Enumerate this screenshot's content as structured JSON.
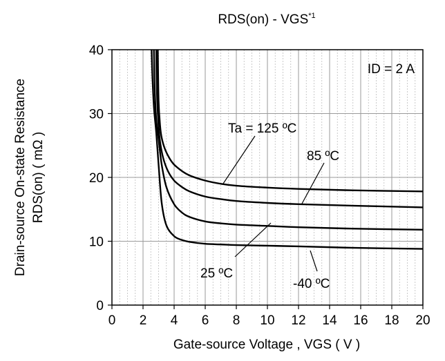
{
  "chart_data": {
    "type": "line",
    "title": "RDS(on) - VGS",
    "title_superscript": "*1",
    "xlabel": "Gate-source Voltage , VGS ( V )",
    "ylabel_line1": "Drain-source On-state Resistance",
    "ylabel_line2": "RDS(on) ( mΩ )",
    "xlim": [
      0,
      20
    ],
    "ylim": [
      0,
      40
    ],
    "x_ticks": [
      "0",
      "2",
      "4",
      "6",
      "8",
      "10",
      "12",
      "14",
      "16",
      "18",
      "20"
    ],
    "y_ticks": [
      "0",
      "10",
      "20",
      "30",
      "40"
    ],
    "grid": true,
    "condition": "ID = 2 A",
    "series": [
      {
        "name": "Ta = 125 ºC",
        "x": [
          2.95,
          3.0,
          3.1,
          3.2,
          3.4,
          3.7,
          4.0,
          4.5,
          5.0,
          6.0,
          7.0,
          8.0,
          10.0,
          12.0,
          15.0,
          20.0
        ],
        "y": [
          40,
          32,
          28,
          26.2,
          24.5,
          23.0,
          22.0,
          21.0,
          20.3,
          19.5,
          19.0,
          18.7,
          18.4,
          18.2,
          18.0,
          17.8
        ]
      },
      {
        "name": "85 ºC",
        "x": [
          2.85,
          2.9,
          3.0,
          3.1,
          3.3,
          3.6,
          4.0,
          4.5,
          5.0,
          6.0,
          7.0,
          8.0,
          10.0,
          12.0,
          15.0,
          20.0
        ],
        "y": [
          40,
          33,
          28,
          25.5,
          23.0,
          21.0,
          19.5,
          18.5,
          17.8,
          17.0,
          16.6,
          16.3,
          16.0,
          15.8,
          15.6,
          15.3
        ]
      },
      {
        "name": "25 ºC",
        "x": [
          2.7,
          2.75,
          2.85,
          3.0,
          3.2,
          3.5,
          4.0,
          4.5,
          5.0,
          6.0,
          7.0,
          8.0,
          10.0,
          12.0,
          15.0,
          20.0
        ],
        "y": [
          40,
          34,
          29,
          26,
          22,
          18.5,
          15.8,
          14.5,
          13.8,
          13.1,
          12.8,
          12.6,
          12.4,
          12.2,
          12.0,
          11.8
        ]
      },
      {
        "name": "-40 ºC",
        "x": [
          2.55,
          2.6,
          2.7,
          2.85,
          3.0,
          3.2,
          3.5,
          4.0,
          4.5,
          5.0,
          6.0,
          7.0,
          8.0,
          10.0,
          12.0,
          15.0,
          20.0
        ],
        "y": [
          40,
          36,
          31,
          27,
          22,
          16,
          12.5,
          10.8,
          10.2,
          9.9,
          9.6,
          9.5,
          9.4,
          9.3,
          9.2,
          9.0,
          8.8
        ]
      }
    ]
  }
}
